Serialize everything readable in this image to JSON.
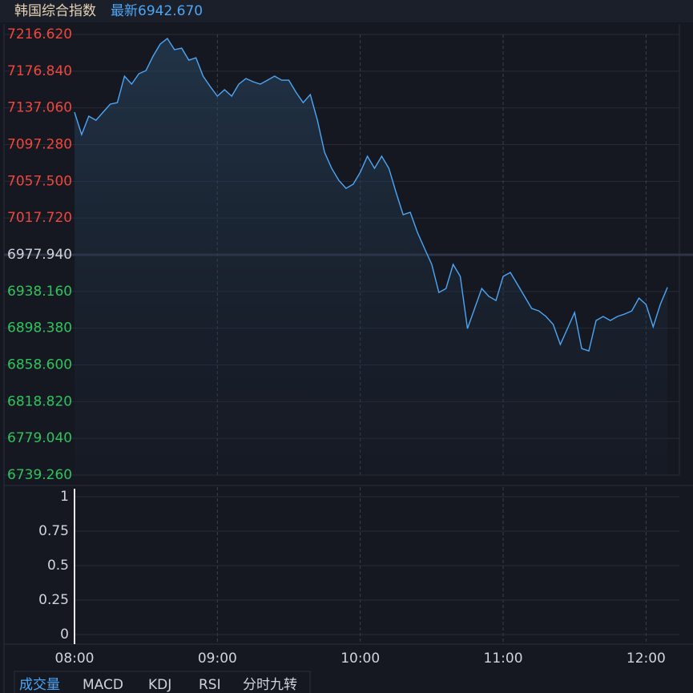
{
  "header": {
    "title": "韩国综合指数",
    "latest_label": "最新",
    "latest": {
      "value": 6942.67,
      "label": "6942.670"
    }
  },
  "chart_data": [
    {
      "type": "line",
      "line_color": "#4da6f5",
      "up_color": "#f0463c",
      "down_color": "#2fc35b",
      "flat_color": "#d0d3da",
      "base": 6977.94,
      "x": [
        "08:00",
        "08:03",
        "08:06",
        "08:09",
        "08:12",
        "08:15",
        "08:18",
        "08:21",
        "08:24",
        "08:27",
        "08:30",
        "08:33",
        "08:36",
        "08:39",
        "08:42",
        "08:45",
        "08:48",
        "08:51",
        "08:54",
        "08:57",
        "09:00",
        "09:03",
        "09:06",
        "09:09",
        "09:12",
        "09:15",
        "09:18",
        "09:21",
        "09:24",
        "09:27",
        "09:30",
        "09:33",
        "09:36",
        "09:39",
        "09:42",
        "09:45",
        "09:48",
        "09:51",
        "09:54",
        "09:57",
        "10:00",
        "10:03",
        "10:06",
        "10:09",
        "10:12",
        "10:15",
        "10:18",
        "10:21",
        "10:24",
        "10:27",
        "10:30",
        "10:33",
        "10:36",
        "10:39",
        "10:42",
        "10:45",
        "10:48",
        "10:51",
        "10:54",
        "10:57",
        "11:00",
        "11:03",
        "11:06",
        "11:09",
        "11:12",
        "11:15",
        "11:18",
        "11:21",
        "11:24",
        "11:27",
        "11:30",
        "11:33",
        "11:36",
        "11:39",
        "11:42",
        "11:45",
        "11:48",
        "11:51",
        "11:54",
        "11:57",
        "12:00",
        "12:03",
        "12:06",
        "12:09"
      ],
      "values": [
        7132.4,
        7108.1,
        7128.1,
        7123.7,
        7132.4,
        7141.1,
        7142.8,
        7171.5,
        7162.8,
        7174.1,
        7177.5,
        7193.2,
        7206.2,
        7212.3,
        7200.1,
        7201.8,
        7188.8,
        7191.4,
        7171.5,
        7160.2,
        7149.8,
        7156.7,
        7149.8,
        7162.8,
        7168.9,
        7165.4,
        7162.8,
        7167.1,
        7171.5,
        7167.1,
        7167.1,
        7154.1,
        7142.8,
        7151.5,
        7123.7,
        7089.0,
        7071.6,
        7058.6,
        7049.9,
        7054.3,
        7067.3,
        7084.7,
        7071.6,
        7084.7,
        7071.6,
        7045.6,
        7021.3,
        7023.9,
        7002.2,
        6984.8,
        6967.5,
        6937.1,
        6941.4,
        6967.5,
        6954.5,
        6898.0,
        6919.7,
        6941.4,
        6932.8,
        6928.4,
        6954.5,
        6958.8,
        6945.8,
        6932.8,
        6919.7,
        6917.1,
        6911.1,
        6902.4,
        6880.7,
        6898.0,
        6915.4,
        6876.3,
        6873.7,
        6906.7,
        6911.1,
        6906.7,
        6911.1,
        6913.7,
        6917.1,
        6931.0,
        6924.1,
        6899.8,
        6924.1,
        6942.67
      ],
      "xlim": [
        "08:00",
        "12:14"
      ],
      "xticks": [
        "08:00",
        "09:00",
        "10:00",
        "11:00",
        "12:00"
      ],
      "ylim": [
        6739.26,
        7216.62
      ],
      "yticks": [
        {
          "value": 7216.62,
          "label": "7216.620"
        },
        {
          "value": 7176.84,
          "label": "7176.840"
        },
        {
          "value": 7137.06,
          "label": "7137.060"
        },
        {
          "value": 7097.28,
          "label": "7097.280"
        },
        {
          "value": 7057.5,
          "label": "7057.500"
        },
        {
          "value": 7017.72,
          "label": "7017.720"
        },
        {
          "value": 6977.94,
          "label": "6977.940"
        },
        {
          "value": 6938.16,
          "label": "6938.160"
        },
        {
          "value": 6898.38,
          "label": "6898.380"
        },
        {
          "value": 6858.6,
          "label": "6858.600"
        },
        {
          "value": 6818.82,
          "label": "6818.820"
        },
        {
          "value": 6779.04,
          "label": "6779.040"
        },
        {
          "value": 6739.26,
          "label": "6739.260"
        }
      ]
    },
    {
      "type": "bar",
      "values": [],
      "ylim": [
        0,
        1
      ],
      "yticks": [
        1,
        0.75,
        0.5,
        0.25,
        0
      ]
    }
  ],
  "tabs": [
    "成交量",
    "MACD",
    "KDJ",
    "RSI",
    "分时九转"
  ],
  "active_tab": 0
}
